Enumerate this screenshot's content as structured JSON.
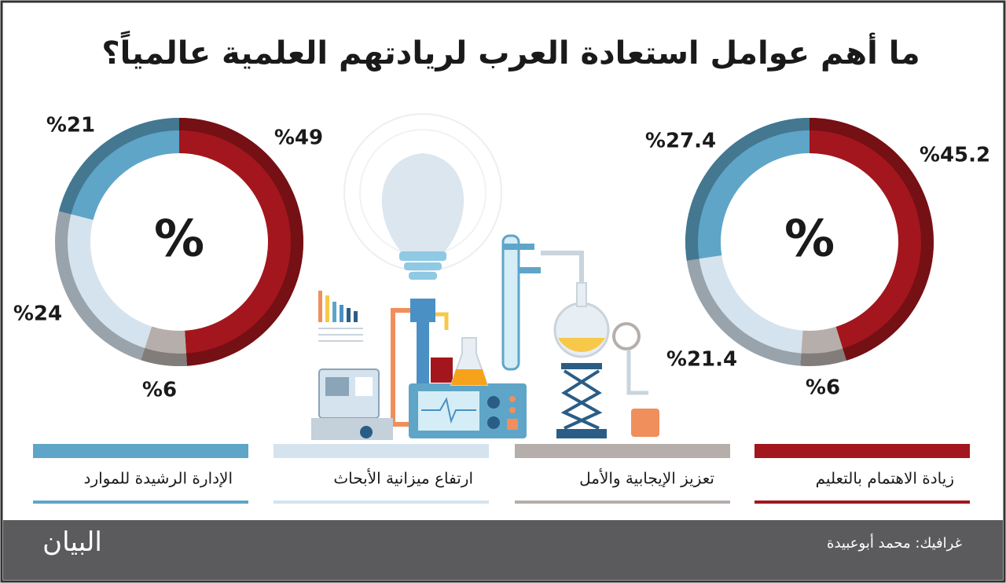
{
  "title": "ما أهم عوامل استعادة العرب لريادتهم العلمية عالمياً؟",
  "legend": {
    "categories": [
      "زيادة الاهتمام بالتعليم",
      "تعزيز الإيجابية والأمل",
      "ارتفاع ميزانية الأبحاث",
      "الإدارة الرشيدة للموارد"
    ],
    "colors": [
      "#a3161d",
      "#b5aeaa",
      "#d5e3ee",
      "#5ea5c8"
    ]
  },
  "chart_data": [
    {
      "type": "pie",
      "center_label": "%",
      "values": [
        45.2,
        6,
        21.4,
        27.4
      ],
      "value_labels": [
        "%45.2",
        "%6",
        "%21.4",
        "%27.4"
      ]
    },
    {
      "type": "pie",
      "center_label": "%",
      "values": [
        49,
        6,
        24,
        21
      ],
      "value_labels": [
        "%49",
        "%6",
        "%24",
        "%21"
      ]
    }
  ],
  "footer": {
    "credit": "غرافيك: محمد أبوعبيدة",
    "logo": "البيان"
  }
}
